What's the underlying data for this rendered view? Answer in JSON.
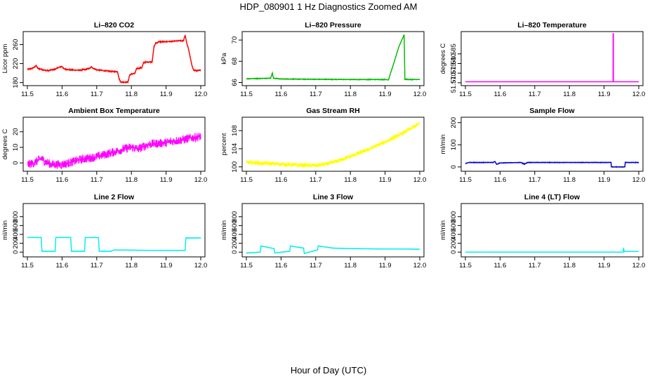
{
  "figure": {
    "title": "HDP_080901  1 Hz Diagnostics Zoomed AM",
    "xlabel": "Hour of Day (UTC)"
  },
  "chart_data": [
    {
      "id": "co2",
      "type": "line",
      "title": "Li–820 CO2",
      "ylabel": "Licor ppm",
      "color": "#ff0000",
      "xlim": [
        11.5,
        12.0
      ],
      "ylim": [
        178,
        283
      ],
      "xticks": [
        11.5,
        11.6,
        11.7,
        11.8,
        11.9,
        12.0
      ],
      "yticks": [
        180,
        220,
        260
      ],
      "noise": 1.5,
      "points": [
        [
          11.5,
          208
        ],
        [
          11.51,
          209
        ],
        [
          11.52,
          212
        ],
        [
          11.525,
          216
        ],
        [
          11.53,
          210
        ],
        [
          11.55,
          206
        ],
        [
          11.56,
          205
        ],
        [
          11.57,
          207
        ],
        [
          11.58,
          208
        ],
        [
          11.59,
          212
        ],
        [
          11.6,
          214
        ],
        [
          11.605,
          209
        ],
        [
          11.62,
          207
        ],
        [
          11.65,
          206
        ],
        [
          11.67,
          208
        ],
        [
          11.68,
          210
        ],
        [
          11.685,
          213
        ],
        [
          11.69,
          210
        ],
        [
          11.7,
          207
        ],
        [
          11.72,
          205
        ],
        [
          11.75,
          203
        ],
        [
          11.76,
          203
        ],
        [
          11.765,
          187
        ],
        [
          11.77,
          181
        ],
        [
          11.78,
          181
        ],
        [
          11.79,
          181
        ],
        [
          11.795,
          196
        ],
        [
          11.8,
          198
        ],
        [
          11.81,
          199
        ],
        [
          11.815,
          210
        ],
        [
          11.82,
          210
        ],
        [
          11.83,
          211
        ],
        [
          11.835,
          222
        ],
        [
          11.84,
          223
        ],
        [
          11.86,
          224
        ],
        [
          11.865,
          255
        ],
        [
          11.87,
          263
        ],
        [
          11.88,
          266
        ],
        [
          11.9,
          266
        ],
        [
          11.92,
          267
        ],
        [
          11.94,
          268
        ],
        [
          11.95,
          268
        ],
        [
          11.955,
          280
        ],
        [
          11.96,
          262
        ],
        [
          11.965,
          250
        ],
        [
          11.97,
          232
        ],
        [
          11.975,
          215
        ],
        [
          11.98,
          206
        ],
        [
          11.99,
          205
        ],
        [
          12.0,
          206
        ]
      ]
    },
    {
      "id": "pressure",
      "type": "line",
      "title": "Li–820 Pressure",
      "ylabel": "kPa",
      "color": "#00bb00",
      "xlim": [
        11.5,
        12.0
      ],
      "ylim": [
        65.9,
        70.6
      ],
      "xticks": [
        11.5,
        11.6,
        11.7,
        11.8,
        11.9,
        12.0
      ],
      "yticks": [
        66,
        68,
        70
      ],
      "noise": 0.04,
      "points": [
        [
          11.5,
          66.35
        ],
        [
          11.57,
          66.4
        ],
        [
          11.575,
          66.9
        ],
        [
          11.578,
          66.4
        ],
        [
          11.6,
          66.33
        ],
        [
          11.7,
          66.3
        ],
        [
          11.8,
          66.28
        ],
        [
          11.9,
          66.28
        ],
        [
          11.91,
          66.25
        ],
        [
          11.915,
          66.8
        ],
        [
          11.925,
          67.8
        ],
        [
          11.94,
          69.4
        ],
        [
          11.955,
          70.5
        ],
        [
          11.957,
          66.3
        ],
        [
          11.97,
          66.28
        ],
        [
          12.0,
          66.28
        ]
      ]
    },
    {
      "id": "li820temp",
      "type": "line",
      "title": "Li–820 Temperature",
      "ylabel": "degrees C",
      "color": "#ff00ff",
      "xlim": [
        11.5,
        12.0
      ],
      "ylim": [
        51.5696,
        51.5955
      ],
      "xticks": [
        11.5,
        11.6,
        11.7,
        11.8,
        11.9,
        12.0
      ],
      "yticks": [
        51.57,
        51.575,
        51.58,
        51.585
      ],
      "yticklabels": [
        "51.570",
        "51.575",
        "51.580",
        "51.585"
      ],
      "noise": 0,
      "points": [
        [
          11.5,
          51.5705
        ],
        [
          11.926,
          51.5705
        ],
        [
          11.926,
          51.5955
        ],
        [
          11.927,
          51.5955
        ],
        [
          11.927,
          51.5705
        ],
        [
          12.0,
          51.5705
        ]
      ]
    },
    {
      "id": "ambient",
      "type": "line",
      "title": "Ambient Box Temperature",
      "ylabel": "degrees C",
      "color": "#ff00ff",
      "xlim": [
        11.5,
        12.0
      ],
      "ylim": [
        -4,
        28
      ],
      "xticks": [
        11.5,
        11.6,
        11.7,
        11.8,
        11.9,
        12.0
      ],
      "yticks": [
        0,
        10,
        20
      ],
      "noise": 2.8,
      "points": [
        [
          11.5,
          -1
        ],
        [
          11.52,
          0
        ],
        [
          11.54,
          3
        ],
        [
          11.55,
          1
        ],
        [
          11.57,
          -1
        ],
        [
          11.6,
          -1
        ],
        [
          11.62,
          0
        ],
        [
          11.65,
          2
        ],
        [
          11.7,
          4
        ],
        [
          11.75,
          7
        ],
        [
          11.78,
          9
        ],
        [
          11.8,
          10
        ],
        [
          11.82,
          9
        ],
        [
          11.85,
          12
        ],
        [
          11.9,
          13
        ],
        [
          11.92,
          14
        ],
        [
          11.95,
          15
        ],
        [
          11.97,
          16
        ],
        [
          12.0,
          17
        ]
      ]
    },
    {
      "id": "rh",
      "type": "line",
      "title": "Gas Stream RH",
      "ylabel": "percent",
      "color": "#ffff00",
      "xlim": [
        11.5,
        12.0
      ],
      "ylim": [
        99.5,
        110.5
      ],
      "xticks": [
        11.5,
        11.6,
        11.7,
        11.8,
        11.9,
        12.0
      ],
      "yticks": [
        100,
        104,
        108
      ],
      "noise": 0.45,
      "points": [
        [
          11.5,
          101.0
        ],
        [
          11.55,
          100.8
        ],
        [
          11.6,
          100.6
        ],
        [
          11.65,
          100.4
        ],
        [
          11.7,
          100.3
        ],
        [
          11.73,
          100.6
        ],
        [
          11.75,
          101.0
        ],
        [
          11.8,
          102.3
        ],
        [
          11.85,
          103.8
        ],
        [
          11.9,
          105.5
        ],
        [
          11.95,
          107.4
        ],
        [
          12.0,
          109.6
        ]
      ]
    },
    {
      "id": "sampleflow",
      "type": "line",
      "title": "Sample Flow",
      "ylabel": "ml/min",
      "color": "#0000cc",
      "xlim": [
        11.5,
        12.0
      ],
      "ylim": [
        -10,
        215
      ],
      "xticks": [
        11.5,
        11.6,
        11.7,
        11.8,
        11.9,
        12.0
      ],
      "yticks": [
        0,
        100,
        200
      ],
      "noise": 1.5,
      "points": [
        [
          11.5,
          15
        ],
        [
          11.51,
          20
        ],
        [
          11.58,
          20
        ],
        [
          11.585,
          25
        ],
        [
          11.59,
          12
        ],
        [
          11.6,
          18
        ],
        [
          11.66,
          20
        ],
        [
          11.67,
          13
        ],
        [
          11.68,
          20
        ],
        [
          11.75,
          20
        ],
        [
          11.8,
          20
        ],
        [
          11.92,
          20
        ],
        [
          11.921,
          0
        ],
        [
          11.96,
          0
        ],
        [
          11.961,
          20
        ],
        [
          12.0,
          20
        ]
      ]
    },
    {
      "id": "line2",
      "type": "line",
      "title": "Line 2 Flow",
      "ylabel": "ml/min",
      "color": "#00eeee",
      "xlim": [
        11.5,
        12.0
      ],
      "ylim": [
        -60,
        1050
      ],
      "xticks": [
        11.5,
        11.6,
        11.7,
        11.8,
        11.9,
        12.0
      ],
      "yticks": [
        0,
        200,
        400,
        600,
        800
      ],
      "noise": 4,
      "points": [
        [
          11.5,
          330
        ],
        [
          11.54,
          330
        ],
        [
          11.542,
          20
        ],
        [
          11.58,
          20
        ],
        [
          11.582,
          330
        ],
        [
          11.625,
          330
        ],
        [
          11.627,
          20
        ],
        [
          11.665,
          20
        ],
        [
          11.667,
          330
        ],
        [
          11.705,
          330
        ],
        [
          11.707,
          20
        ],
        [
          11.74,
          20
        ],
        [
          11.75,
          50
        ],
        [
          11.8,
          45
        ],
        [
          11.85,
          40
        ],
        [
          11.9,
          40
        ],
        [
          11.955,
          40
        ],
        [
          11.957,
          320
        ],
        [
          12.0,
          320
        ]
      ]
    },
    {
      "id": "line3",
      "type": "line",
      "title": "Line 3 Flow",
      "ylabel": "ml/min",
      "color": "#00eeee",
      "xlim": [
        11.5,
        12.0
      ],
      "ylim": [
        -60,
        1050
      ],
      "xticks": [
        11.5,
        11.6,
        11.7,
        11.8,
        11.9,
        12.0
      ],
      "yticks": [
        0,
        200,
        400,
        600,
        800
      ],
      "noise": 4,
      "points": [
        [
          11.5,
          -20
        ],
        [
          11.54,
          0
        ],
        [
          11.542,
          140
        ],
        [
          11.58,
          80
        ],
        [
          11.582,
          -20
        ],
        [
          11.625,
          20
        ],
        [
          11.627,
          140
        ],
        [
          11.665,
          90
        ],
        [
          11.667,
          -30
        ],
        [
          11.705,
          50
        ],
        [
          11.707,
          140
        ],
        [
          11.75,
          90
        ],
        [
          11.8,
          80
        ],
        [
          11.9,
          70
        ],
        [
          11.95,
          70
        ],
        [
          12.0,
          65
        ]
      ]
    },
    {
      "id": "line4",
      "type": "line",
      "title": "Line 4 (LT) Flow",
      "ylabel": "ml/min",
      "color": "#00eeee",
      "xlim": [
        11.5,
        12.0
      ],
      "ylim": [
        -60,
        1050
      ],
      "xticks": [
        11.5,
        11.6,
        11.7,
        11.8,
        11.9,
        12.0
      ],
      "yticks": [
        0,
        200,
        400,
        600,
        800
      ],
      "noise": 2,
      "points": [
        [
          11.5,
          0
        ],
        [
          11.955,
          0
        ],
        [
          11.956,
          100
        ],
        [
          11.958,
          15
        ],
        [
          12.0,
          15
        ]
      ]
    }
  ]
}
